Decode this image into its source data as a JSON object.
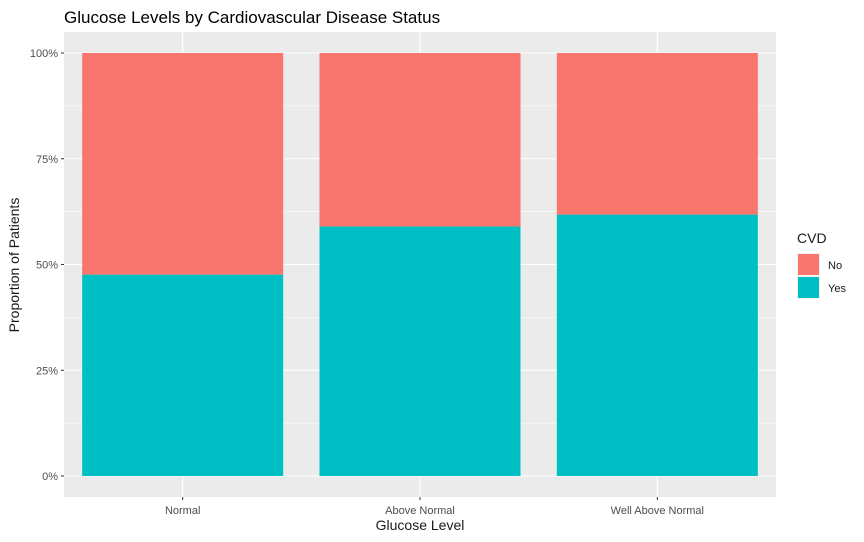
{
  "chart_data": {
    "type": "bar",
    "stacked": true,
    "normalized": true,
    "title": "Glucose Levels by Cardiovascular Disease Status",
    "xlabel": "Glucose Level",
    "ylabel": "Proportion of Patients",
    "categories": [
      "Normal",
      "Above Normal",
      "Well Above Normal"
    ],
    "series": [
      {
        "name": "Yes",
        "color": "#00BFC4",
        "values": [
          0.476,
          0.59,
          0.618
        ]
      },
      {
        "name": "No",
        "color": "#F8766D",
        "values": [
          0.524,
          0.41,
          0.382
        ]
      }
    ],
    "ylim": [
      0,
      1
    ],
    "yticks": [
      0,
      0.25,
      0.5,
      0.75,
      1
    ],
    "ytick_labels": [
      "0%",
      "25%",
      "50%",
      "75%",
      "100%"
    ],
    "grid": true,
    "panel_background": "#EBEBEB",
    "legend": {
      "title": "CVD",
      "placement": "right",
      "entries": [
        {
          "label": "No",
          "color": "#F8766D"
        },
        {
          "label": "Yes",
          "color": "#00BFC4"
        }
      ]
    }
  }
}
